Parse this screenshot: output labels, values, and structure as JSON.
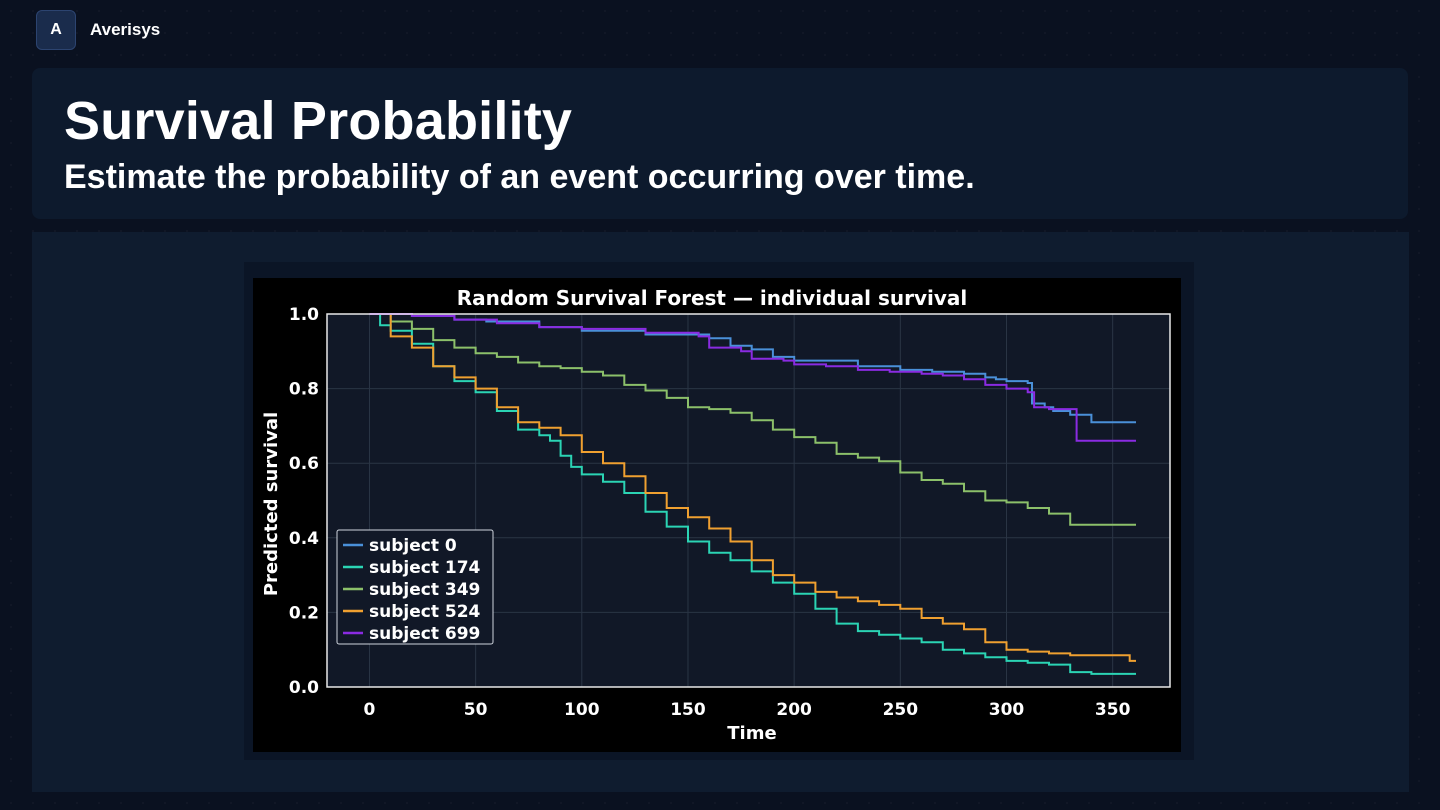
{
  "app": {
    "logo_letter": "A",
    "name": "Averisys"
  },
  "header": {
    "title": "Survival Probability",
    "subtitle": "Estimate the probability of an event occurring over time."
  },
  "colors": {
    "background": "#0a1120",
    "card": "#0d1a2d",
    "panel": "#0f1c2f",
    "plot_bg": "#111827",
    "axes_bg": "#000000"
  },
  "chart_data": {
    "type": "line",
    "title": "Random Survival Forest — individual survival",
    "xlabel": "Time",
    "ylabel": "Predicted survival",
    "xlim": [
      -20,
      377
    ],
    "ylim": [
      0,
      1.0
    ],
    "xticks": [
      0,
      50,
      100,
      150,
      200,
      250,
      300,
      350
    ],
    "yticks": [
      0.0,
      0.2,
      0.4,
      0.6,
      0.8,
      1.0
    ],
    "grid": true,
    "legend_position": "lower-left",
    "step": true,
    "series": [
      {
        "name": "subject 0",
        "color": "#4a90d9",
        "x": [
          0,
          20,
          40,
          55,
          80,
          100,
          130,
          160,
          170,
          180,
          190,
          200,
          230,
          250,
          265,
          280,
          290,
          295,
          300,
          310,
          312,
          318,
          322,
          330,
          340,
          361
        ],
        "y": [
          1.0,
          0.995,
          0.985,
          0.98,
          0.965,
          0.955,
          0.945,
          0.935,
          0.915,
          0.905,
          0.885,
          0.875,
          0.86,
          0.85,
          0.845,
          0.84,
          0.83,
          0.825,
          0.82,
          0.815,
          0.76,
          0.75,
          0.74,
          0.73,
          0.71,
          0.71
        ]
      },
      {
        "name": "subject 174",
        "color": "#2bd4b4",
        "x": [
          0,
          5,
          10,
          20,
          30,
          40,
          50,
          60,
          70,
          80,
          85,
          90,
          95,
          100,
          110,
          120,
          130,
          140,
          150,
          160,
          170,
          180,
          190,
          200,
          210,
          220,
          230,
          240,
          250,
          260,
          270,
          280,
          290,
          300,
          310,
          320,
          330,
          340,
          361
        ],
        "y": [
          1.0,
          0.97,
          0.955,
          0.92,
          0.86,
          0.82,
          0.79,
          0.74,
          0.69,
          0.675,
          0.66,
          0.62,
          0.59,
          0.57,
          0.55,
          0.52,
          0.47,
          0.43,
          0.39,
          0.36,
          0.34,
          0.31,
          0.28,
          0.25,
          0.21,
          0.17,
          0.15,
          0.14,
          0.13,
          0.12,
          0.1,
          0.09,
          0.08,
          0.07,
          0.065,
          0.06,
          0.04,
          0.035,
          0.035
        ]
      },
      {
        "name": "subject 349",
        "color": "#8cc06a",
        "x": [
          0,
          10,
          20,
          30,
          40,
          50,
          60,
          70,
          80,
          90,
          100,
          110,
          120,
          130,
          140,
          150,
          160,
          170,
          180,
          190,
          200,
          210,
          220,
          230,
          240,
          250,
          260,
          270,
          280,
          290,
          300,
          310,
          320,
          330,
          340,
          361
        ],
        "y": [
          1.0,
          0.98,
          0.96,
          0.93,
          0.91,
          0.895,
          0.885,
          0.87,
          0.86,
          0.855,
          0.845,
          0.835,
          0.81,
          0.795,
          0.775,
          0.75,
          0.745,
          0.735,
          0.715,
          0.69,
          0.67,
          0.655,
          0.625,
          0.615,
          0.605,
          0.575,
          0.555,
          0.545,
          0.525,
          0.5,
          0.495,
          0.48,
          0.465,
          0.435,
          0.435,
          0.435
        ]
      },
      {
        "name": "subject 524",
        "color": "#f0a030",
        "x": [
          0,
          10,
          20,
          30,
          40,
          50,
          60,
          70,
          80,
          90,
          100,
          110,
          120,
          130,
          140,
          150,
          160,
          170,
          180,
          190,
          200,
          210,
          220,
          230,
          240,
          250,
          260,
          270,
          280,
          290,
          300,
          310,
          320,
          330,
          340,
          358,
          361
        ],
        "y": [
          1.0,
          0.94,
          0.91,
          0.86,
          0.83,
          0.8,
          0.75,
          0.71,
          0.695,
          0.675,
          0.63,
          0.6,
          0.565,
          0.52,
          0.48,
          0.455,
          0.425,
          0.39,
          0.34,
          0.3,
          0.28,
          0.255,
          0.24,
          0.23,
          0.22,
          0.21,
          0.185,
          0.17,
          0.155,
          0.12,
          0.1,
          0.095,
          0.09,
          0.085,
          0.085,
          0.07,
          0.07
        ]
      },
      {
        "name": "subject 699",
        "color": "#8a2be2",
        "x": [
          0,
          20,
          40,
          60,
          80,
          100,
          130,
          155,
          160,
          175,
          180,
          195,
          200,
          215,
          230,
          245,
          260,
          270,
          280,
          290,
          300,
          310,
          313,
          320,
          330,
          333,
          340,
          361
        ],
        "y": [
          1.0,
          0.995,
          0.985,
          0.975,
          0.965,
          0.96,
          0.95,
          0.94,
          0.91,
          0.9,
          0.88,
          0.875,
          0.865,
          0.86,
          0.85,
          0.845,
          0.84,
          0.835,
          0.825,
          0.81,
          0.8,
          0.79,
          0.75,
          0.745,
          0.745,
          0.66,
          0.66,
          0.66
        ]
      }
    ]
  }
}
